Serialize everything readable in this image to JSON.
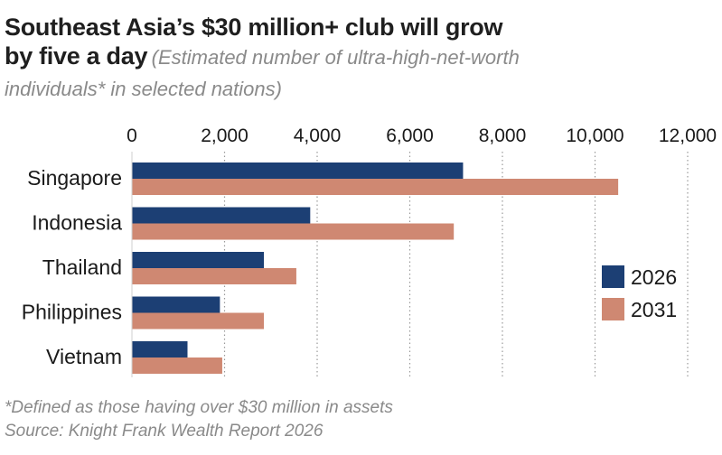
{
  "title": {
    "main_line1": "Southeast Asia’s $30 million+ club will grow",
    "main_line2": "by five a day",
    "subtitle_part1": "(Estimated number of ultra-high-net-worth",
    "subtitle_part2": "individuals* in selected nations)"
  },
  "footer": {
    "note": "*Defined as those having over $30 million in assets",
    "source": "Source: Knight Frank Wealth Report 2026"
  },
  "colors": {
    "series_2026": "#1c3f74",
    "series_2031": "#cf8872",
    "grid": "#9a9a9a",
    "axis_text": "#1a1a1a"
  },
  "chart_data": {
    "type": "bar",
    "orientation": "horizontal",
    "categories": [
      "Singapore",
      "Indonesia",
      "Thailand",
      "Philippines",
      "Vietnam"
    ],
    "series": [
      {
        "name": "2026",
        "values": [
          7150,
          3850,
          2850,
          1900,
          1200
        ]
      },
      {
        "name": "2031",
        "values": [
          10500,
          6950,
          3550,
          2850,
          1950
        ]
      }
    ],
    "xlim": [
      0,
      12000
    ],
    "xticks": [
      0,
      2000,
      4000,
      6000,
      8000,
      10000,
      12000
    ],
    "xtick_labels": [
      "0",
      "2,000",
      "4,000",
      "6,000",
      "8,000",
      "10,000",
      "12,000"
    ],
    "x_axis_position": "top",
    "grid": "vertical dotted",
    "legend_position": "right"
  }
}
